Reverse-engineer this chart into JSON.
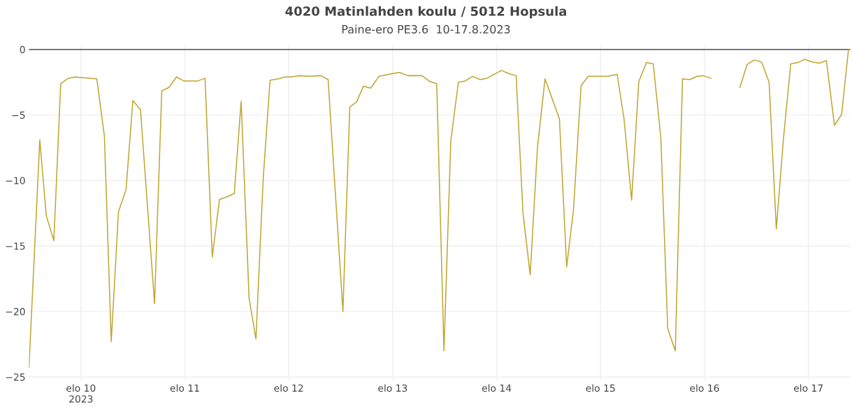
{
  "chart_data": {
    "type": "line",
    "title": "4020 Matinlahden koulu / 5012 Hopsula",
    "subtitle": "Paine-ero PE3.6  10-17.8.2023",
    "x": [
      "2023-08-09T12:00",
      "2023-08-09T14:30",
      "2023-08-09T16:00",
      "2023-08-09T17:45",
      "2023-08-09T19:20",
      "2023-08-09T21:05",
      "2023-08-09T22:40",
      "2023-08-10T03:40",
      "2023-08-10T05:25",
      "2023-08-10T07:00",
      "2023-08-10T08:40",
      "2023-08-10T10:25",
      "2023-08-10T12:00",
      "2023-08-10T13:45",
      "2023-08-10T17:00",
      "2023-08-10T18:40",
      "2023-08-10T20:20",
      "2023-08-10T22:05",
      "2023-08-10T23:45",
      "2023-08-11T03:00",
      "2023-08-11T04:40",
      "2023-08-11T06:20",
      "2023-08-11T08:00",
      "2023-08-11T09:40",
      "2023-08-11T11:25",
      "2023-08-11T13:00",
      "2023-08-11T14:50",
      "2023-08-11T16:25",
      "2023-08-11T18:05",
      "2023-08-11T19:40",
      "2023-08-11T21:30",
      "2023-08-11T23:10",
      "2023-08-12T00:20",
      "2023-08-12T02:30",
      "2023-08-12T04:40",
      "2023-08-12T07:25",
      "2023-08-12T09:05",
      "2023-08-12T12:30",
      "2023-08-12T14:05",
      "2023-08-12T15:40",
      "2023-08-12T17:15",
      "2023-08-12T18:55",
      "2023-08-12T20:50",
      "2023-08-12T23:55",
      "2023-08-13T01:30",
      "2023-08-13T03:30",
      "2023-08-13T06:45",
      "2023-08-13T08:35",
      "2023-08-13T10:10",
      "2023-08-13T11:50",
      "2023-08-13T13:25",
      "2023-08-13T15:10",
      "2023-08-13T16:45",
      "2023-08-13T18:30",
      "2023-08-13T20:10",
      "2023-08-13T21:45",
      "2023-08-14T01:05",
      "2023-08-14T02:50",
      "2023-08-14T04:30",
      "2023-08-14T06:05",
      "2023-08-14T07:45",
      "2023-08-14T09:25",
      "2023-08-14T11:10",
      "2023-08-14T14:30",
      "2023-08-14T16:10",
      "2023-08-14T17:45",
      "2023-08-14T19:30",
      "2023-08-14T21:10",
      "2023-08-15T01:40",
      "2023-08-15T03:50",
      "2023-08-15T05:25",
      "2023-08-15T07:10",
      "2023-08-15T08:50",
      "2023-08-15T10:35",
      "2023-08-15T12:10",
      "2023-08-15T13:55",
      "2023-08-15T15:30",
      "2023-08-15T17:15",
      "2023-08-15T18:55",
      "2023-08-15T20:35",
      "2023-08-15T22:20",
      "2023-08-15T23:40",
      "2023-08-16T01:30",
      "2023-08-16T05:00",
      "2023-08-16T08:10",
      "2023-08-16T09:50",
      "2023-08-16T11:30",
      "2023-08-16T13:10",
      "2023-08-16T14:55",
      "2023-08-16T16:35",
      "2023-08-16T18:15",
      "2023-08-16T19:55",
      "2023-08-16T21:35",
      "2023-08-16T23:10",
      "2023-08-17T00:50",
      "2023-08-17T02:30",
      "2023-08-17T04:10",
      "2023-08-17T06:00",
      "2023-08-17T07:40",
      "2023-08-17T09:15"
    ],
    "series": [
      {
        "color": "#bfa530",
        "values": [
          -24.3,
          -6.9,
          -12.7,
          -14.6,
          -2.6,
          -2.2,
          -2.1,
          -2.25,
          -6.6,
          -22.3,
          -12.4,
          -10.7,
          -3.9,
          -4.6,
          -19.4,
          -3.15,
          -2.9,
          -2.1,
          -2.4,
          -2.4,
          -2.2,
          -15.85,
          -11.45,
          -11.25,
          -11.0,
          -3.95,
          -19.0,
          -22.1,
          -9.9,
          -2.35,
          -2.25,
          -2.1,
          -2.1,
          -2.0,
          -2.05,
          -2.0,
          -2.3,
          -20.0,
          -4.4,
          -4.0,
          -2.8,
          -2.95,
          -2.05,
          -1.85,
          -1.75,
          -2.0,
          -2.0,
          -2.45,
          -2.6,
          -23.0,
          -6.95,
          -2.5,
          -2.4,
          -2.05,
          -2.3,
          -2.2,
          -1.6,
          -1.85,
          -2.0,
          -12.5,
          -17.2,
          -7.5,
          -2.25,
          -5.3,
          -16.6,
          -12.2,
          -2.75,
          -2.05,
          -2.05,
          -1.9,
          -5.3,
          -11.5,
          -2.45,
          -1.0,
          -1.1,
          -6.75,
          -21.3,
          -23.0,
          -2.25,
          -2.3,
          -2.05,
          -2.0,
          -2.2,
          null,
          -2.9,
          -1.15,
          -0.8,
          -0.95,
          -2.5,
          -13.7,
          -6.75,
          -1.1,
          -1.0,
          -0.75,
          -0.95,
          -1.05,
          -0.85,
          -5.8,
          -4.95,
          0
        ]
      }
    ],
    "xlim": [
      "2023-08-09T12:00",
      "2023-08-17T09:40"
    ],
    "xticks": [
      {
        "value": "2023-08-10",
        "label": "elo 10\n2023"
      },
      {
        "value": "2023-08-11",
        "label": "elo 11"
      },
      {
        "value": "2023-08-12",
        "label": "elo 12"
      },
      {
        "value": "2023-08-13",
        "label": "elo 13"
      },
      {
        "value": "2023-08-14",
        "label": "elo 14"
      },
      {
        "value": "2023-08-15",
        "label": "elo 15"
      },
      {
        "value": "2023-08-16",
        "label": "elo 16"
      },
      {
        "value": "2023-08-17",
        "label": "elo 17"
      }
    ],
    "ylim": [
      -25.3,
      0.3
    ],
    "yticks": [
      {
        "value": 0,
        "label": "0"
      },
      {
        "value": -5,
        "label": "−5"
      },
      {
        "value": -10,
        "label": "−10"
      },
      {
        "value": -15,
        "label": "−15"
      },
      {
        "value": -20,
        "label": "−20"
      },
      {
        "value": -25,
        "label": "−25"
      }
    ],
    "ref_lines": [
      {
        "axis": "y",
        "value": 0,
        "color": "#666666"
      }
    ],
    "grid": true,
    "legend": false,
    "marker": "none",
    "line_style": "solid"
  }
}
